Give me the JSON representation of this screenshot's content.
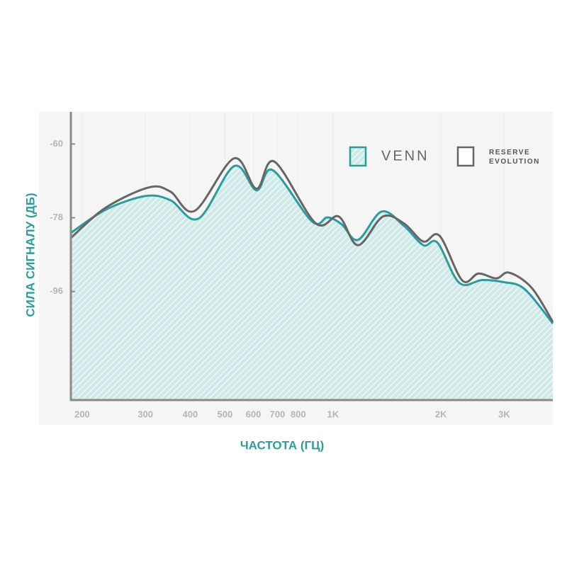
{
  "chart_data": {
    "type": "line",
    "ylabel": "СИЛА СИГНАЛУ (ДБ)",
    "xlabel": "ЧАСТОТА (ГЦ)",
    "xscale": "log",
    "xlim": [
      186,
      4100
    ],
    "ylim": [
      -122.5,
      -52.5
    ],
    "yticks": [
      -60,
      -78,
      -96
    ],
    "xticks": [
      200,
      300,
      400,
      500,
      600,
      700,
      800,
      {
        "value": 1000,
        "label": "1K"
      },
      {
        "value": 2000,
        "label": "2K"
      },
      {
        "value": 3000,
        "label": "3K"
      }
    ],
    "grid": true,
    "legend": "upper right",
    "series": [
      {
        "name": "VENN",
        "color": "#2a9d9c",
        "fill": "hatched",
        "x": [
          186,
          233,
          300,
          352,
          422,
          530,
          612,
          680,
          874,
          966,
          1058,
          1174,
          1366,
          1578,
          1786,
          1956,
          2250,
          2604,
          2986,
          3420,
          4100
        ],
        "values": [
          -81.7,
          -76.0,
          -72.7,
          -73.7,
          -78.2,
          -65.4,
          -71.3,
          -66.4,
          -78.9,
          -77.9,
          -79.6,
          -83.4,
          -76.5,
          -80.0,
          -84.7,
          -84.1,
          -93.9,
          -93.2,
          -93.7,
          -95.4,
          -103.8
        ]
      },
      {
        "name": "RESERVE EVOLUTION",
        "color": "#666666",
        "x": [
          186,
          233,
          307,
          352,
          412,
          530,
          612,
          687,
          894,
          1038,
          1174,
          1378,
          1578,
          1786,
          1982,
          2293,
          2546,
          2852,
          3098,
          3580,
          4100
        ],
        "values": [
          -82.9,
          -75.5,
          -70.6,
          -71.6,
          -76.3,
          -63.5,
          -70.9,
          -64.3,
          -79.3,
          -77.7,
          -84.7,
          -77.7,
          -79.4,
          -83.8,
          -82.4,
          -93.3,
          -91.6,
          -92.8,
          -91.4,
          -95.1,
          -103.4
        ]
      }
    ]
  }
}
